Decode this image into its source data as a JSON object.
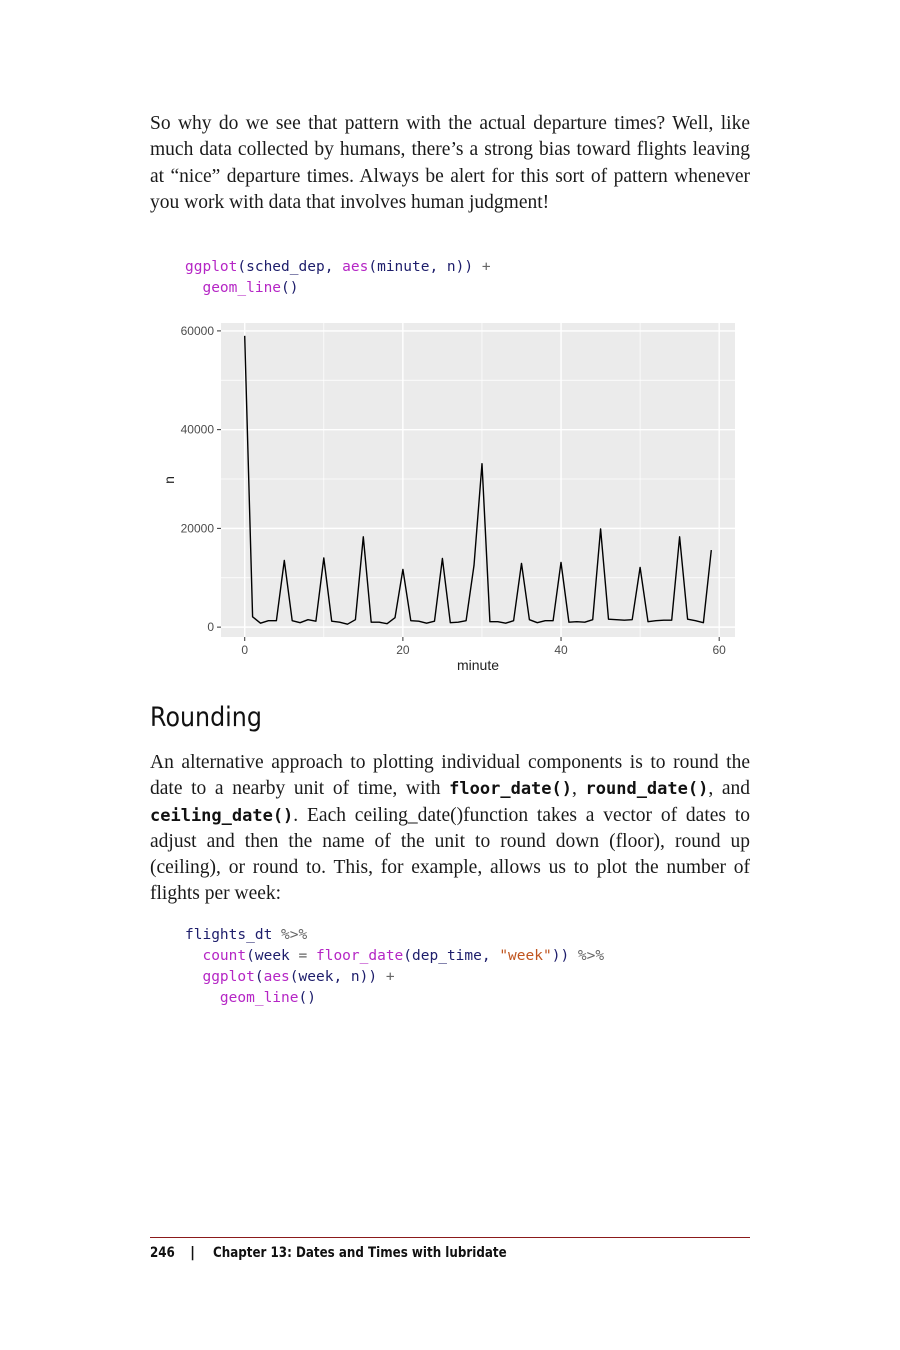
{
  "paragraphs": {
    "p1": "So why do we see that pattern with the actual departure times? Well, like much data collected by humans, there’s a strong bias toward flights leaving at “nice” departure times. Always be alert for this sort of pattern whenever you work with data that involves human judg­ment!",
    "p2_before": "An alternative approach to plotting individual components is to round the date to a nearby unit of time, with ",
    "p2_code1": "floor_date()",
    "p2_sep1": ", ",
    "p2_code2": "round_date()",
    "p2_sep2": ", and ",
    "p2_code3": "ceiling_date()",
    "p2_after": ". Each ceiling_date()function takes a vector of dates to adjust and then the name of the unit to round down (floor), round up (ceiling), or round to. This, for exam­ple, allows us to plot the number of flights per week:"
  },
  "code1": {
    "l1_fn": "ggplot",
    "l1_a": "(sched_dep, ",
    "l1_fn2": "aes",
    "l1_b": "(minute, n)) ",
    "l1_op": "+",
    "l2_fn": "geom_line",
    "l2_a": "()"
  },
  "heading": "Rounding",
  "code2": {
    "l1_a": "flights_dt ",
    "l1_op": "%>%",
    "l2_fn": "count",
    "l2_a": "(week ",
    "l2_eq": "=",
    "l2_fn2": "floor_date",
    "l2_b": "(dep_time, ",
    "l2_str": "\"week\"",
    "l2_c": ")) ",
    "l2_op": "%>%",
    "l3_fn": "ggplot",
    "l3_a": "(",
    "l3_fn2": "aes",
    "l3_b": "(week, n)) ",
    "l3_op": "+",
    "l4_fn": "geom_line",
    "l4_a": "()"
  },
  "chart_data": {
    "type": "line",
    "xlabel": "minute",
    "ylabel": "n",
    "xlim": [
      -3,
      62
    ],
    "ylim": [
      -2000,
      61600
    ],
    "x_ticks": [
      0,
      20,
      40,
      60
    ],
    "y_ticks": [
      0,
      20000,
      40000,
      60000
    ],
    "x_tick_labels": [
      "0",
      "20",
      "40",
      "60"
    ],
    "y_tick_labels": [
      "0",
      "20000",
      "40000",
      "60000"
    ],
    "grid": true,
    "legend": "none",
    "colors": {
      "panel": "#ebebeb",
      "grid": "#ffffff",
      "line": "#000000"
    },
    "series": [
      {
        "x": [
          0,
          1,
          2,
          3,
          4,
          5,
          6,
          7,
          8,
          9,
          10,
          11,
          12,
          13,
          14,
          15,
          16,
          17,
          18,
          19,
          20,
          21,
          22,
          23,
          24,
          25,
          26,
          27,
          28,
          29,
          30,
          31,
          32,
          33,
          34,
          35,
          36,
          37,
          38,
          39,
          40,
          41,
          42,
          43,
          44,
          45,
          46,
          47,
          48,
          49,
          50,
          51,
          52,
          53,
          54,
          55,
          56,
          57,
          58,
          59
        ],
        "y": [
          59000,
          2100,
          800,
          1300,
          1300,
          13500,
          1300,
          900,
          1500,
          1200,
          14000,
          1200,
          1000,
          600,
          1500,
          18300,
          1000,
          1000,
          700,
          1900,
          11700,
          1300,
          1200,
          800,
          1200,
          13900,
          900,
          1000,
          1300,
          12500,
          33100,
          1100,
          1100,
          800,
          1300,
          12900,
          1500,
          900,
          1300,
          1300,
          13100,
          1000,
          1100,
          1000,
          1500,
          19900,
          1600,
          1500,
          1400,
          1500,
          12100,
          1100,
          1300,
          1400,
          1400,
          18300,
          1600,
          1300,
          900,
          15600
        ]
      }
    ]
  },
  "footer": {
    "page_number": "246",
    "separator": "|",
    "chapter": "Chapter 13: Dates and Times with lubridate"
  }
}
